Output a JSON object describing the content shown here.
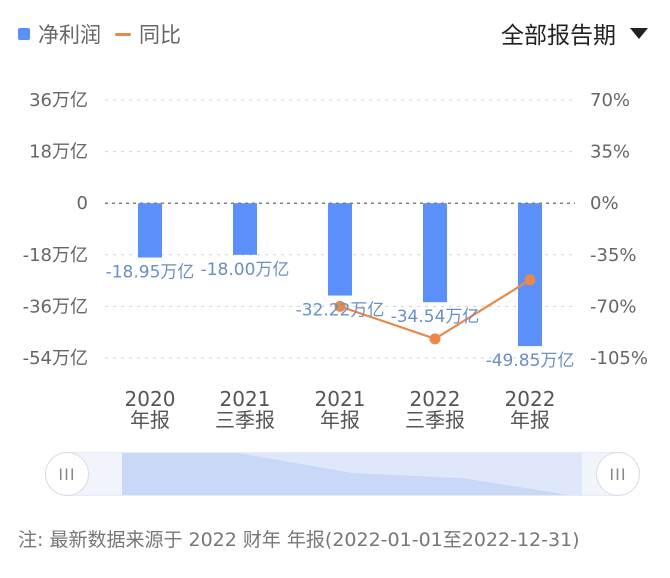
{
  "legend": {
    "bar_label": "净利润",
    "line_label": "同比"
  },
  "period_select": {
    "label": "全部报告期",
    "icon": "caret-down-icon"
  },
  "colors": {
    "bar": "#5b8ff9",
    "line": "#e8894a",
    "label": "#6a8fc4",
    "grid": "#d0d0d0"
  },
  "chart_data": {
    "type": "bar",
    "categories": [
      [
        "2020",
        "年报"
      ],
      [
        "2021",
        "三季报"
      ],
      [
        "2021",
        "年报"
      ],
      [
        "2022",
        "三季报"
      ],
      [
        "2022",
        "年报"
      ]
    ],
    "series": [
      {
        "name": "净利润",
        "type": "bar",
        "values": [
          -18.95,
          -18.0,
          -32.22,
          -34.54,
          -49.85
        ],
        "value_labels": [
          "-18.95万亿",
          "-18.00万亿",
          "-32.22万亿",
          "-34.54万亿",
          "-49.85万亿"
        ]
      },
      {
        "name": "同比",
        "type": "line",
        "axis": "right",
        "values": [
          null,
          null,
          -70,
          -92,
          -52
        ]
      }
    ],
    "y_left": {
      "ticks": [
        "36万亿",
        "18万亿",
        "0",
        "-18万亿",
        "-36万亿",
        "-54万亿"
      ],
      "range": [
        -54,
        36
      ]
    },
    "y_right": {
      "ticks": [
        "70%",
        "35%",
        "0%",
        "-35%",
        "-70%",
        "-105%"
      ],
      "range": [
        -105,
        70
      ]
    },
    "grid": true
  },
  "slider": {
    "left_handle": "III",
    "right_handle": "III"
  },
  "note": "注: 最新数据来源于 2022 财年 年报(2022-01-01至2022-12-31)"
}
